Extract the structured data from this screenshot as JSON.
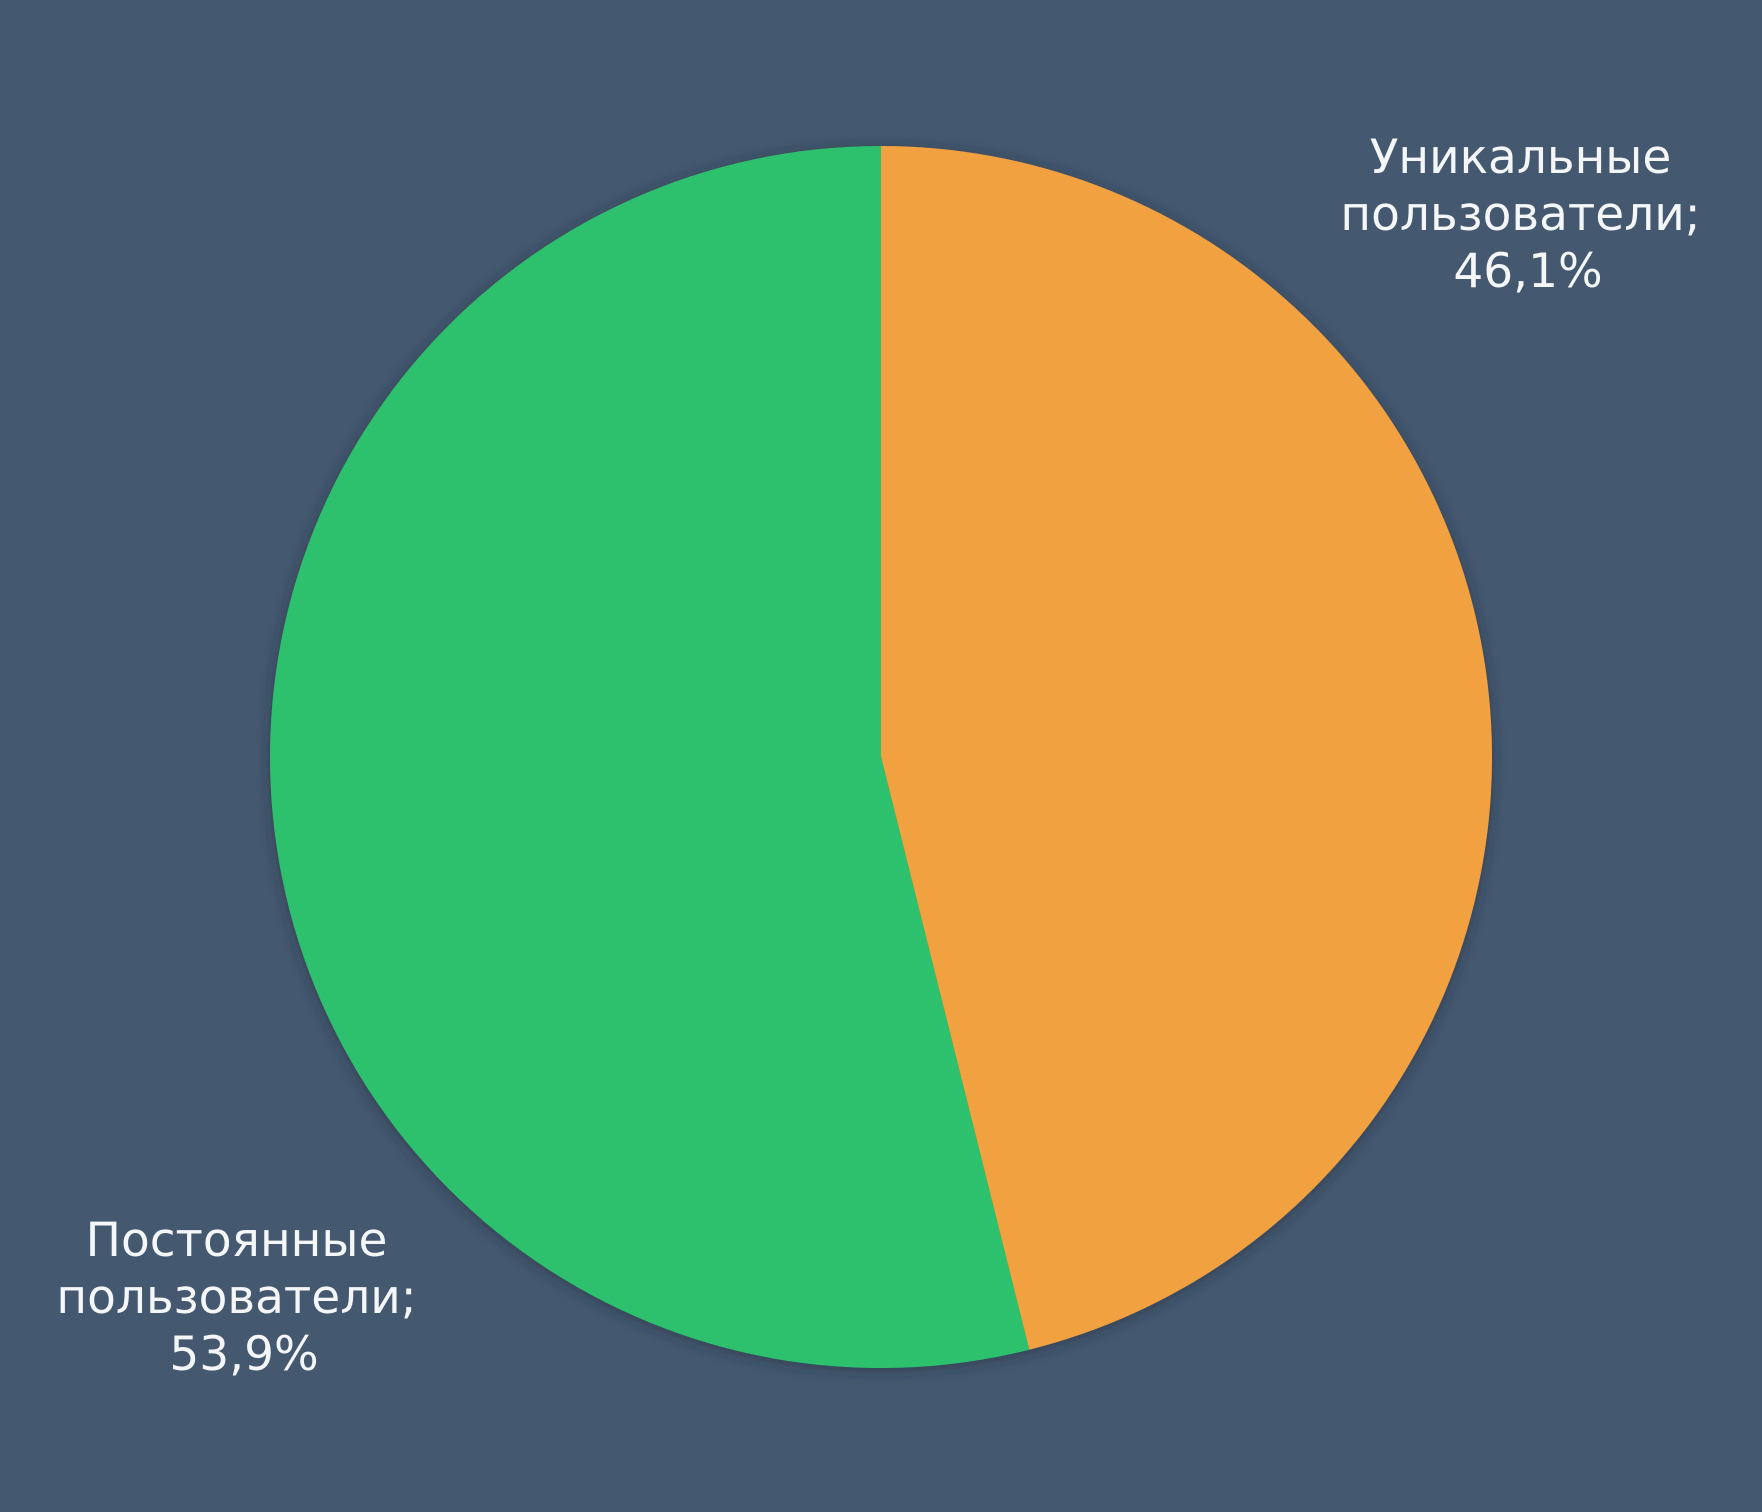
{
  "background_color": "#445870",
  "chart_data": {
    "type": "pie",
    "title": "",
    "start_angle_deg": 0,
    "direction": "clockwise",
    "slices": [
      {
        "label_lines": [
          "Уникальные",
          "пользователи;",
          "46,1%"
        ],
        "value": 46.1,
        "color": "#f1a13f"
      },
      {
        "label_lines": [
          "Постоянные",
          "пользователи;",
          "53,9%"
        ],
        "value": 53.9,
        "color": "#2dc16d"
      }
    ]
  }
}
